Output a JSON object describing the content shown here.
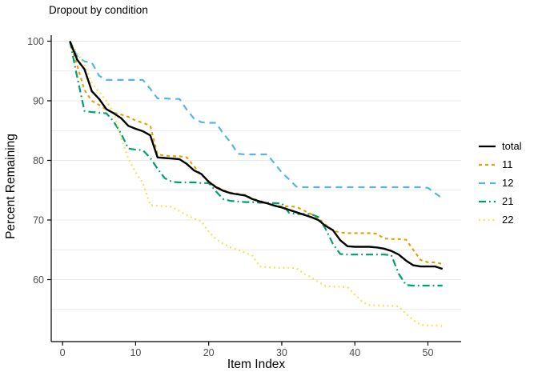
{
  "title": "Dropout by condition",
  "chart_data": {
    "type": "line",
    "title": "Dropout by condition",
    "xlabel": "Item Index",
    "ylabel": "Percent Remaining",
    "x_ticks": [
      0,
      10,
      20,
      30,
      40,
      50
    ],
    "y_ticks": [
      60,
      70,
      80,
      90,
      100
    ],
    "y_gridlines": [
      55,
      60,
      65,
      70,
      75,
      80,
      85,
      90,
      95,
      100
    ],
    "xlim": [
      -1.55,
      54.55
    ],
    "ylim": [
      49.6,
      101.0
    ],
    "x_start_item": 1,
    "grid": "horizontal-only",
    "legend_position": "right",
    "axis_color": "#000000",
    "tick_label_color": "#4d4d4d",
    "gridline_color": "#e9e9e9",
    "series": [
      {
        "name": "total",
        "color": "#000000",
        "dash": "solid",
        "width": 2.4,
        "values": [
          100,
          96.9,
          95.3,
          91.6,
          90.3,
          88.6,
          87.9,
          87.1,
          85.8,
          85.3,
          84.9,
          84.2,
          80.5,
          80.4,
          80.3,
          80.2,
          79.4,
          78.3,
          77.7,
          76.4,
          75.5,
          74.9,
          74.5,
          74.3,
          74.1,
          73.5,
          73.1,
          72.8,
          72.4,
          72.1,
          71.7,
          71.3,
          70.9,
          70.5,
          70.0,
          69.0,
          68.3,
          66.6,
          65.6,
          65.5,
          65.5,
          65.5,
          65.4,
          65.2,
          64.8,
          64.2,
          63.2,
          62.4,
          62.2,
          62.2,
          62.2,
          61.8
        ]
      },
      {
        "name": "11",
        "color": "#E69F00",
        "dash": "dash",
        "width": 2.1,
        "values": [
          100,
          95.9,
          91.8,
          90.0,
          89.3,
          88.5,
          88.0,
          87.7,
          87.3,
          86.7,
          86.3,
          85.8,
          81.0,
          80.8,
          80.7,
          80.7,
          80.5,
          79.0,
          77.6,
          76.5,
          75.6,
          75.0,
          74.6,
          74.4,
          74.2,
          73.6,
          73.2,
          72.8,
          72.4,
          72.3,
          72.3,
          72.2,
          71.6,
          71.0,
          70.3,
          69.2,
          68.2,
          67.9,
          67.8,
          67.8,
          67.8,
          67.8,
          67.7,
          66.9,
          66.8,
          66.8,
          66.7,
          65.0,
          63.3,
          62.9,
          62.9,
          62.6
        ]
      },
      {
        "name": "12",
        "color": "#56B4E9",
        "dash": "longdash",
        "width": 2.2,
        "values": [
          100,
          97.5,
          96.6,
          96.4,
          94.2,
          93.5,
          93.5,
          93.5,
          93.5,
          93.5,
          93.5,
          92.0,
          90.4,
          90.4,
          90.3,
          90.3,
          88.5,
          87.0,
          86.4,
          86.3,
          86.3,
          84.5,
          83.0,
          81.1,
          81.0,
          81.0,
          81.0,
          81.0,
          79.5,
          78.0,
          76.8,
          75.6,
          75.5,
          75.5,
          75.5,
          75.5,
          75.5,
          75.5,
          75.5,
          75.5,
          75.5,
          75.5,
          75.5,
          75.5,
          75.5,
          75.5,
          75.5,
          75.5,
          75.5,
          75.4,
          74.5,
          73.6
        ]
      },
      {
        "name": "21",
        "color": "#009E73",
        "dash": "dotdash",
        "width": 2.2,
        "values": [
          100,
          94.0,
          88.3,
          88.1,
          88.0,
          87.9,
          86.5,
          84.5,
          82.0,
          81.8,
          81.7,
          80.4,
          78.6,
          77.0,
          76.4,
          76.3,
          76.3,
          76.3,
          76.2,
          76.2,
          74.8,
          73.5,
          73.2,
          73.1,
          73.0,
          73.0,
          72.9,
          72.9,
          72.8,
          72.8,
          71.2,
          71.0,
          71.0,
          71.0,
          70.5,
          68.5,
          66.0,
          64.3,
          64.2,
          64.2,
          64.2,
          64.2,
          64.2,
          64.2,
          64.1,
          61.0,
          59.1,
          59.0,
          59.0,
          59.0,
          59.0,
          59.0
        ]
      },
      {
        "name": "22",
        "color": "#F0E442",
        "dash": "dotted",
        "width": 2.2,
        "values": [
          100,
          98.0,
          96.2,
          92.9,
          91.5,
          90.0,
          88.0,
          83.8,
          80.3,
          78.0,
          76.2,
          72.5,
          72.4,
          72.3,
          72.2,
          71.5,
          70.8,
          70.2,
          69.8,
          68.0,
          66.8,
          66.0,
          65.4,
          65.0,
          64.5,
          64.0,
          62.2,
          62.1,
          62.0,
          62.0,
          62.0,
          61.9,
          61.0,
          60.4,
          59.6,
          58.9,
          58.8,
          58.8,
          58.7,
          57.5,
          56.3,
          55.7,
          55.7,
          55.6,
          55.6,
          55.5,
          54.3,
          53.2,
          52.4,
          52.3,
          52.3,
          52.2
        ]
      }
    ]
  }
}
